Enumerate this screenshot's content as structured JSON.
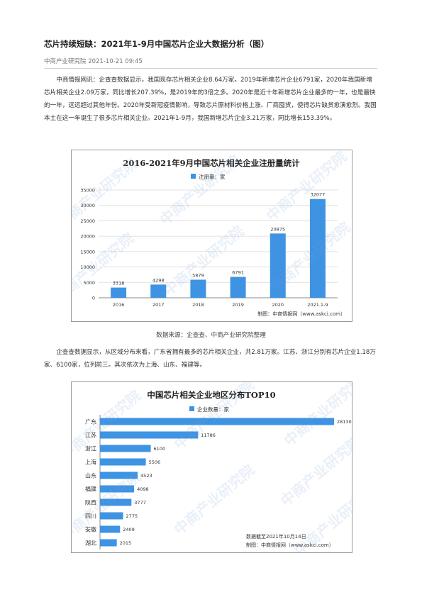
{
  "article": {
    "title": "芯片持续短缺：2021年1-9月中国芯片企业大数据分析（图）",
    "meta": "中商产业研究院 2021-10-21 09:45",
    "paragraph1": "中商情报网讯：企查查数据显示，我国现存芯片相关企业8.64万家。2019年新增芯片企业6791家，2020年我国新增芯片相关企业2.09万家，同比增长207.39%，是2019年的3倍之多。2020年是近十年新增芯片企业最多的一年，也是最快的一年，远远超过其他年份。2020年受新冠疫情影响，导致芯片原材料价格上涨、厂商囤货，使得芯片缺货愈演愈烈。我国本土在这一年诞生了很多芯片相关企业。2021年1-9月，我国新增芯片企业3.21万家，同比增长153.39%。",
    "source": "数据来源：企查查、中商产业研究院整理",
    "paragraph2": "企查查数据显示，从区域分布来看，广东省拥有最多的芯片相关企业，共2.81万家。江苏、浙江分别有芯片企业1.18万家、6100家，位列前三。其次依次为上海、山东、福建等。"
  },
  "watermark": "中商产业研究院",
  "colors": {
    "bar": "#3e93e3",
    "grid": "#d9d9d9",
    "axis": "#888888"
  },
  "chart_data": [
    {
      "type": "bar",
      "title": "2016-2021年9月中国芯片相关企业注册量统计",
      "legend": "注册量：家",
      "categories": [
        "2016",
        "2017",
        "2018",
        "2019",
        "2020",
        "2021.1-9"
      ],
      "values": [
        3318,
        4298,
        5879,
        6791,
        20875,
        32077
      ],
      "ylim": [
        0,
        35000
      ],
      "yticks": [
        0,
        5000,
        10000,
        15000,
        20000,
        25000,
        30000,
        35000
      ],
      "grid": true,
      "credit": "制图：中商情报网（www.askci.com）"
    },
    {
      "type": "bar",
      "orientation": "horizontal",
      "title": "中国芯片相关企业地区分布TOP10",
      "legend": "企业数量：家",
      "categories": [
        "广东",
        "江苏",
        "浙江",
        "上海",
        "山东",
        "福建",
        "陕西",
        "四川",
        "安徽",
        "湖北"
      ],
      "values": [
        28130,
        11786,
        6100,
        5506,
        4523,
        4098,
        3777,
        2775,
        2409,
        2015
      ],
      "note": "数据截至2021年10月14日",
      "credit": "制图：中商情报网（www.askci.com）"
    }
  ]
}
